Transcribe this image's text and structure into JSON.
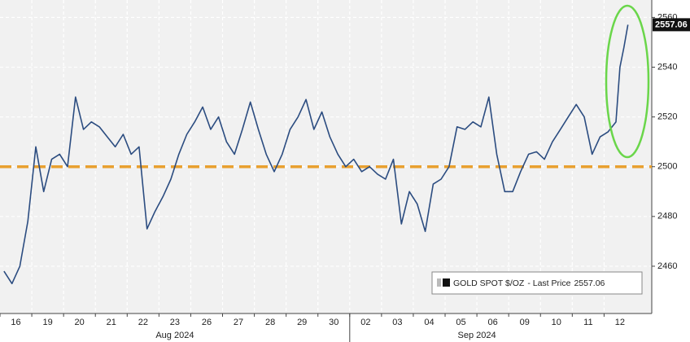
{
  "chart_data": {
    "type": "line",
    "series": [
      {
        "name": "GOLD SPOT $/OZ",
        "color": "#2b4c80",
        "x": [
          0.125,
          0.375,
          0.625,
          0.875,
          1.125,
          1.375,
          1.625,
          1.875,
          2.125,
          2.375,
          2.625,
          2.875,
          3.125,
          3.375,
          3.625,
          3.875,
          4.125,
          4.375,
          4.625,
          4.875,
          5.125,
          5.375,
          5.625,
          5.875,
          6.125,
          6.375,
          6.625,
          6.875,
          7.125,
          7.375,
          7.625,
          7.875,
          8.125,
          8.375,
          8.625,
          8.875,
          9.125,
          9.375,
          9.625,
          9.875,
          10.125,
          10.375,
          10.625,
          10.875,
          11.125,
          11.375,
          11.625,
          11.875,
          12.125,
          12.375,
          12.625,
          12.875,
          13.125,
          13.375,
          13.625,
          13.875,
          14.125,
          14.375,
          14.625,
          14.875,
          15.125,
          15.375,
          15.625,
          15.875,
          16.125,
          16.375,
          16.625,
          16.875,
          17.125,
          17.375,
          17.625,
          17.875,
          18.125,
          18.375,
          18.625,
          18.875,
          19.125,
          19.375,
          19.5,
          19.625,
          19.75
        ],
        "values": [
          2458,
          2453,
          2460,
          2478,
          2508,
          2490,
          2503,
          2505,
          2500,
          2528,
          2515,
          2518,
          2516,
          2512,
          2508,
          2513,
          2505,
          2508,
          2475,
          2482,
          2488,
          2495,
          2505,
          2513,
          2518,
          2524,
          2515,
          2520,
          2510,
          2505,
          2515,
          2526,
          2515,
          2505,
          2498,
          2505,
          2515,
          2520,
          2527,
          2515,
          2522,
          2512,
          2505,
          2500,
          2503,
          2498,
          2500,
          2497,
          2495,
          2503,
          2477,
          2490,
          2485,
          2474,
          2493,
          2495,
          2500,
          2516,
          2515,
          2518,
          2516,
          2528,
          2505,
          2490,
          2490,
          2498,
          2505,
          2506,
          2503,
          2510,
          2515,
          2520,
          2525,
          2520,
          2505,
          2512,
          2514,
          2518,
          2540,
          2548,
          2557.06
        ]
      }
    ],
    "legend_text": "- Last Price",
    "reference_line": {
      "value": 2500,
      "color": "#e8a030"
    },
    "highlight_color": "#6ad64a",
    "xlim": [
      0,
      20.5
    ],
    "xticks": [
      {
        "value": 0,
        "label": "16"
      },
      {
        "value": 1,
        "label": "19"
      },
      {
        "value": 2,
        "label": "20"
      },
      {
        "value": 3,
        "label": "21"
      },
      {
        "value": 4,
        "label": "22"
      },
      {
        "value": 5,
        "label": "23"
      },
      {
        "value": 6,
        "label": "26"
      },
      {
        "value": 7,
        "label": "27"
      },
      {
        "value": 8,
        "label": "28"
      },
      {
        "value": 9,
        "label": "29"
      },
      {
        "value": 10,
        "label": "30"
      },
      {
        "value": 11,
        "label": "02"
      },
      {
        "value": 12,
        "label": "03"
      },
      {
        "value": 13,
        "label": "04"
      },
      {
        "value": 14,
        "label": "05"
      },
      {
        "value": 15,
        "label": "06"
      },
      {
        "value": 16,
        "label": "09"
      },
      {
        "value": 17,
        "label": "10"
      },
      {
        "value": 18,
        "label": "11"
      },
      {
        "value": 19,
        "label": "12"
      }
    ],
    "months": [
      "Aug 2024",
      "Sep 2024"
    ],
    "ylim": [
      2441,
      2567
    ],
    "yticks": [
      2460,
      2480,
      2500,
      2520,
      2540,
      2560
    ],
    "grid": true
  }
}
